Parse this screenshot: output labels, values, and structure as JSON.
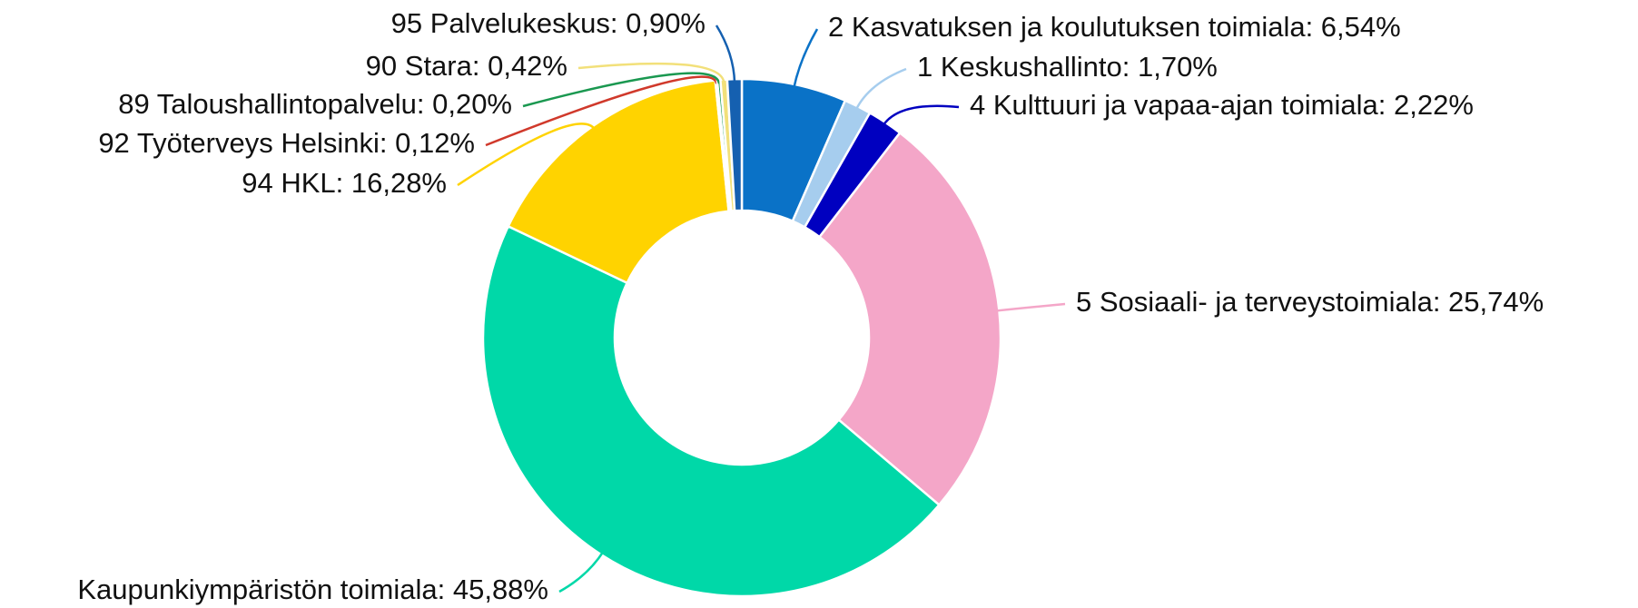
{
  "chart_data": {
    "type": "donut",
    "categories": [
      "2 Kasvatuksen ja koulutuksen toimiala: 6,54%",
      "1 Keskushallinto: 1,70%",
      "4 Kulttuuri ja vapaa-ajan toimiala: 2,22%",
      "5 Sosiaali- ja terveystoimiala: 25,74%",
      "Kaupunkiympäristön toimiala: 45,88%",
      "94 HKL: 16,28%",
      "92 Työterveys Helsinki: 0,12%",
      "89 Taloushallintopalvelu: 0,20%",
      "90 Stara: 0,42%",
      "95 Palvelukeskus: 0,90%"
    ],
    "values": [
      6.54,
      1.7,
      2.22,
      25.74,
      45.88,
      16.28,
      0.12,
      0.2,
      0.42,
      0.9
    ],
    "colors": [
      "#0a72c7",
      "#a6cdee",
      "#0000c0",
      "#f4a6c8",
      "#00d8a8",
      "#ffd300",
      "#d0392b",
      "#1a9850",
      "#f2e07a",
      "#1560b0"
    ]
  }
}
